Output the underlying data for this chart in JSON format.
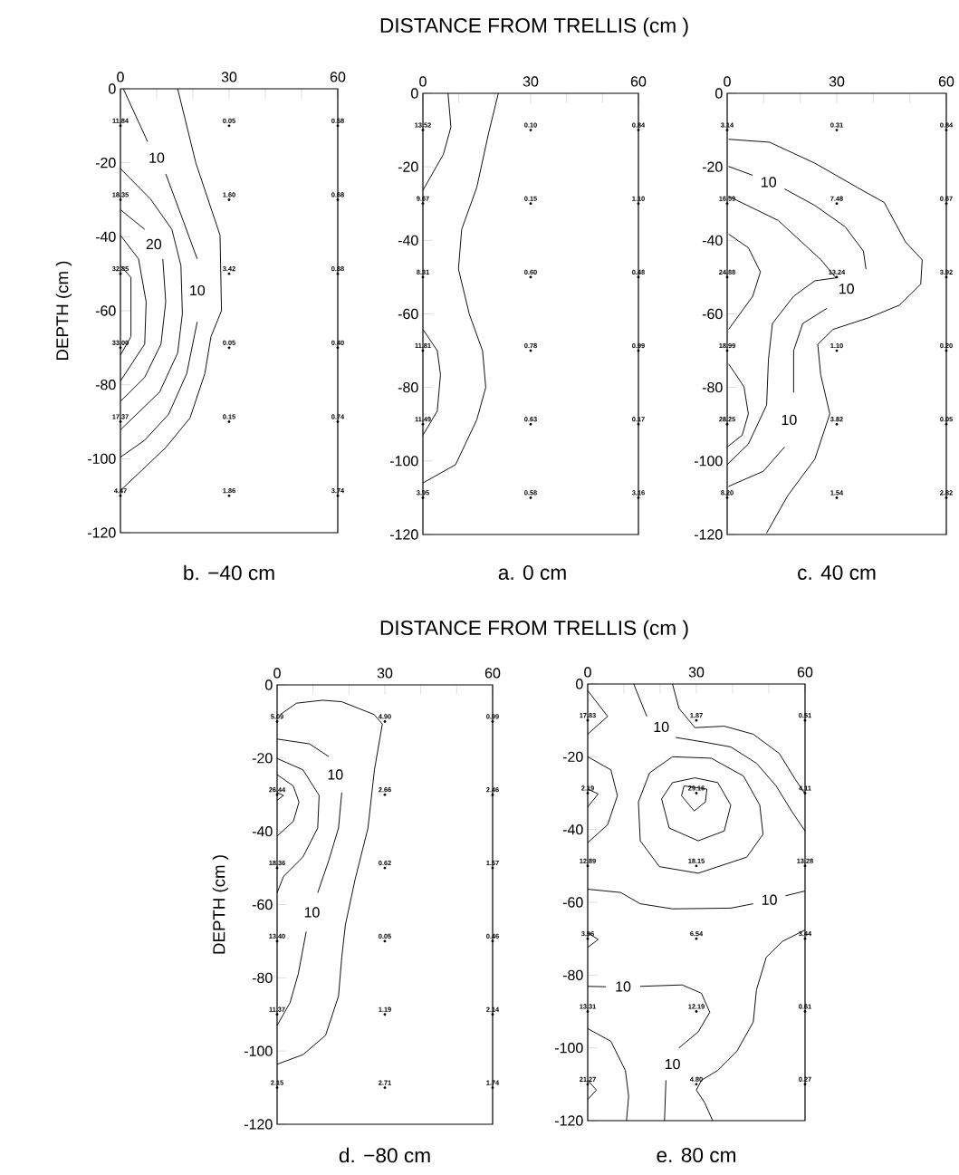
{
  "chart_data": [
    {
      "type": "scatter",
      "subtitle": "b.   −40 cm",
      "ylabel": "DEPTH (cm )",
      "xlim": [
        0,
        60
      ],
      "ylim": [
        -120,
        0
      ],
      "xticks": [
        0,
        {
          "value": 10,
          "label": null
        },
        {
          "value": 20,
          "label": null
        },
        30,
        {
          "value": 40,
          "label": null
        },
        {
          "value": 50,
          "label": null
        },
        60
      ],
      "yticks": [
        -120,
        -100,
        -80,
        -60,
        -40,
        -20,
        0
      ],
      "grid": false,
      "legend": false,
      "series": [
        {
          "type": "line",
          "color": "#000000",
          "marker": "none",
          "line_style": "solid",
          "x": [
            15.8,
            20.8,
            27.5,
            27.9,
            25,
            23.3,
            19.2,
            12.5,
            0
          ],
          "values": [
            0,
            -20,
            -39.6,
            -60,
            -67,
            -77,
            -89,
            -97,
            -108.6
          ]
        },
        {
          "type": "line",
          "name": "10",
          "color": "#000000",
          "marker": "none",
          "line_style": "solid",
          "x": [
            0.8,
            7.5,
            null,
            12.5,
            16.7,
            21.2,
            null,
            21.2,
            18.3,
            13.3,
            6.7,
            0
          ],
          "values": [
            0,
            -14.3,
            null,
            -23,
            -34,
            -46,
            null,
            -63,
            -77,
            -88,
            -95,
            -99.6
          ]
        },
        {
          "type": "line",
          "color": "#000000",
          "marker": "none",
          "line_style": "solid",
          "x": [
            0,
            8.3,
            14.2,
            16.7,
            17.1,
            15.8,
            10.8,
            0
          ],
          "values": [
            -21.6,
            -29.8,
            -38,
            -47.8,
            -60.8,
            -71.4,
            -82,
            -92.2
          ]
        },
        {
          "type": "line",
          "name": "20",
          "color": "#000000",
          "marker": "none",
          "line_style": "solid",
          "x": [
            0,
            6.7,
            null,
            11.7,
            12.5,
            11.2,
            6.7,
            0
          ],
          "values": [
            -32.7,
            -38,
            null,
            -46,
            -57.6,
            -69,
            -78,
            -84.5
          ]
        },
        {
          "type": "line",
          "color": "#000000",
          "marker": "none",
          "line_style": "solid",
          "x": [
            0,
            5,
            7.1,
            6.7,
            0
          ],
          "values": [
            -39.6,
            -46,
            -57.6,
            -69,
            -79
          ]
        },
        {
          "type": "line",
          "color": "#000000",
          "marker": "none",
          "line_style": "solid",
          "x": [
            0,
            2.9,
            2.9,
            0
          ],
          "values": [
            -47.8,
            -51,
            -67,
            -72
          ]
        },
        {
          "type": "scatter",
          "color": "#000000",
          "marker": "circle",
          "x": [
            0,
            0,
            0,
            0,
            0,
            0,
            30,
            30,
            30,
            30,
            30,
            30,
            60,
            60,
            60,
            60,
            60,
            60
          ],
          "values": [
            -10,
            -30,
            -50,
            -70,
            -90,
            -110,
            -10,
            -30,
            -50,
            -70,
            -90,
            -110,
            -10,
            -30,
            -50,
            -70,
            -90,
            -110
          ]
        }
      ],
      "annotations": [
        {
          "text": "11.84",
          "x": 0,
          "y": -10
        },
        {
          "text": "18.35",
          "x": 0,
          "y": -30
        },
        {
          "text": "32.85",
          "x": 0,
          "y": -50
        },
        {
          "text": "33.00",
          "x": 0,
          "y": -70
        },
        {
          "text": "17.37",
          "x": 0,
          "y": -90
        },
        {
          "text": "4.47",
          "x": 0,
          "y": -110
        },
        {
          "text": "0.05",
          "x": 30,
          "y": -10
        },
        {
          "text": "1.60",
          "x": 30,
          "y": -30
        },
        {
          "text": "3.42",
          "x": 30,
          "y": -50
        },
        {
          "text": "0.05",
          "x": 30,
          "y": -70
        },
        {
          "text": "0.15",
          "x": 30,
          "y": -90
        },
        {
          "text": "1.86",
          "x": 30,
          "y": -110
        },
        {
          "text": "0.58",
          "x": 60,
          "y": -10
        },
        {
          "text": "0.68",
          "x": 60,
          "y": -30
        },
        {
          "text": "0.88",
          "x": 60,
          "y": -50
        },
        {
          "text": "0.40",
          "x": 60,
          "y": -70
        },
        {
          "text": "0.74",
          "x": 60,
          "y": -90
        },
        {
          "text": "3.74",
          "x": 60,
          "y": -110
        }
      ]
    },
    {
      "type": "scatter",
      "title": "DISTANCE FROM TRELLIS (cm )",
      "subtitle": "a.   0 cm",
      "xlim": [
        0,
        60
      ],
      "ylim": [
        -120,
        0
      ],
      "xticks": [
        0,
        {
          "value": 10,
          "label": null
        },
        {
          "value": 20,
          "label": null
        },
        30,
        {
          "value": 40,
          "label": null
        },
        {
          "value": 50,
          "label": null
        },
        60
      ],
      "yticks": [
        -120,
        -100,
        -80,
        -60,
        -40,
        -20,
        0
      ],
      "grid": false,
      "legend": false,
      "series": [
        {
          "type": "line",
          "color": "#000000",
          "marker": "none",
          "line_style": "solid",
          "x": [
            7,
            7.8,
            5.7,
            0
          ],
          "values": [
            0,
            -9.2,
            -16.6,
            -26.4
          ]
        },
        {
          "type": "line",
          "color": "#000000",
          "marker": "none",
          "line_style": "solid",
          "x": [
            21,
            18.3,
            15,
            10.8,
            9.9,
            12.9,
            16.6,
            17.5,
            15,
            9.1,
            0
          ],
          "values": [
            0,
            -10.8,
            -25.6,
            -37,
            -47.8,
            -60,
            -70,
            -80,
            -88.8,
            -101,
            -106
          ]
        },
        {
          "type": "line",
          "color": "#000000",
          "marker": "none",
          "line_style": "solid",
          "x": [
            0,
            4,
            4.9,
            4,
            0
          ],
          "values": [
            -64.2,
            -70,
            -76.5,
            -86.4,
            -93
          ]
        },
        {
          "type": "scatter",
          "color": "#000000",
          "marker": "circle",
          "x": [
            0,
            0,
            0,
            0,
            0,
            0,
            30,
            30,
            30,
            30,
            30,
            30,
            60,
            60,
            60,
            60,
            60,
            60
          ],
          "values": [
            -10,
            -30,
            -50,
            -70,
            -90,
            -110,
            -10,
            -30,
            -50,
            -70,
            -90,
            -110,
            -10,
            -30,
            -50,
            -70,
            -90,
            -110
          ]
        }
      ],
      "annotations": [
        {
          "text": "13.52",
          "x": 0,
          "y": -10
        },
        {
          "text": "9.67",
          "x": 0,
          "y": -30
        },
        {
          "text": "8.31",
          "x": 0,
          "y": -50
        },
        {
          "text": "11.81",
          "x": 0,
          "y": -70
        },
        {
          "text": "11.49",
          "x": 0,
          "y": -90
        },
        {
          "text": "3.95",
          "x": 0,
          "y": -110
        },
        {
          "text": "0.10",
          "x": 30,
          "y": -10
        },
        {
          "text": "0.15",
          "x": 30,
          "y": -30
        },
        {
          "text": "0.60",
          "x": 30,
          "y": -50
        },
        {
          "text": "0.78",
          "x": 30,
          "y": -70
        },
        {
          "text": "0.63",
          "x": 30,
          "y": -90
        },
        {
          "text": "0.58",
          "x": 30,
          "y": -110
        },
        {
          "text": "0.84",
          "x": 60,
          "y": -10
        },
        {
          "text": "1.10",
          "x": 60,
          "y": -30
        },
        {
          "text": "0.48",
          "x": 60,
          "y": -50
        },
        {
          "text": "0.99",
          "x": 60,
          "y": -70
        },
        {
          "text": "0.17",
          "x": 60,
          "y": -90
        },
        {
          "text": "3.16",
          "x": 60,
          "y": -110
        }
      ]
    },
    {
      "type": "scatter",
      "subtitle": "c.   40 cm",
      "xlim": [
        0,
        60
      ],
      "ylim": [
        -120,
        0
      ],
      "xticks": [
        0,
        {
          "value": 10,
          "label": null
        },
        {
          "value": 20,
          "label": null
        },
        30,
        {
          "value": 40,
          "label": null
        },
        {
          "value": 50,
          "label": null
        },
        60
      ],
      "yticks": [
        -120,
        -100,
        -80,
        -60,
        -40,
        -20,
        0
      ],
      "grid": false,
      "legend": false,
      "series": [
        {
          "type": "line",
          "color": "#000000",
          "marker": "none",
          "line_style": "solid",
          "x": [
            0.4,
            11.6,
            24,
            35.6,
            43,
            48.8,
            53.4,
            53,
            47.2,
            38.9,
            29,
            24.8,
            25.6,
            28.1,
            24,
            16.6,
            10.8
          ],
          "values": [
            -12.5,
            -13.3,
            -19,
            -25.6,
            -29.7,
            -40.4,
            -45.3,
            -51.9,
            -57.6,
            -61,
            -64.2,
            -68.3,
            -76.5,
            -87.2,
            -99.5,
            -109.4,
            -119.6
          ]
        },
        {
          "type": "line",
          "name": "10",
          "color": "#000000",
          "marker": "none",
          "line_style": "solid",
          "x": [
            0.4,
            7,
            null,
            15.7,
            24,
            32.3,
            37.3,
            38,
            null,
            27.3,
            20.7,
            18.2,
            18.2,
            null,
            15.7,
            9.9,
            0.4
          ],
          "values": [
            -19.9,
            -22.3,
            null,
            -26,
            -30.5,
            -36.3,
            -42.9,
            -47.8,
            null,
            -58.5,
            -62.6,
            -70,
            -81.4,
            null,
            -96.2,
            -102.8,
            -106.9
          ]
        },
        {
          "type": "line",
          "color": "#000000",
          "marker": "none",
          "line_style": "solid",
          "x": [
            0.4,
            14,
            25.7,
            29.8,
            24,
            18.2,
            12.4,
            11.3,
            10.8,
            5.8,
            0
          ],
          "values": [
            -28,
            -34.6,
            -45.3,
            -50.2,
            -51,
            -55.2,
            -62.6,
            -72.4,
            -84.8,
            -95.4,
            -101
          ]
        },
        {
          "type": "line",
          "color": "#000000",
          "marker": "none",
          "line_style": "solid",
          "x": [
            0.4,
            5.8,
            9.1,
            7,
            0.4
          ],
          "values": [
            -38.3,
            -42,
            -48.6,
            -55.2,
            -64.2
          ]
        },
        {
          "type": "line",
          "color": "#000000",
          "marker": "none",
          "line_style": "solid",
          "x": [
            0.4,
            4.6,
            5.8,
            4.1,
            0
          ],
          "values": [
            -73.6,
            -79.8,
            -87.2,
            -93,
            -96.2
          ]
        },
        {
          "type": "scatter",
          "color": "#000000",
          "marker": "circle",
          "x": [
            0,
            0,
            0,
            0,
            0,
            0,
            30,
            30,
            30,
            30,
            30,
            30,
            60,
            60,
            60,
            60,
            60,
            60
          ],
          "values": [
            -10,
            -30,
            -50,
            -70,
            -90,
            -110,
            -10,
            -30,
            -50,
            -70,
            -90,
            -110,
            -10,
            -30,
            -50,
            -70,
            -90,
            -110
          ]
        }
      ],
      "annotations": [
        {
          "text": "3.14",
          "x": 0,
          "y": -10
        },
        {
          "text": "16.59",
          "x": 0,
          "y": -30
        },
        {
          "text": "24.88",
          "x": 0,
          "y": -50
        },
        {
          "text": "18.99",
          "x": 0,
          "y": -70
        },
        {
          "text": "28.25",
          "x": 0,
          "y": -90
        },
        {
          "text": "8.20",
          "x": 0,
          "y": -110
        },
        {
          "text": "0.31",
          "x": 30,
          "y": -10
        },
        {
          "text": "7.48",
          "x": 30,
          "y": -30
        },
        {
          "text": "13.24",
          "x": 30,
          "y": -50
        },
        {
          "text": "1.10",
          "x": 30,
          "y": -70
        },
        {
          "text": "3.82",
          "x": 30,
          "y": -90
        },
        {
          "text": "1.54",
          "x": 30,
          "y": -110
        },
        {
          "text": "0.84",
          "x": 60,
          "y": -10
        },
        {
          "text": "0.67",
          "x": 60,
          "y": -30
        },
        {
          "text": "3.92",
          "x": 60,
          "y": -50
        },
        {
          "text": "0.20",
          "x": 60,
          "y": -70
        },
        {
          "text": "0.05",
          "x": 60,
          "y": -90
        },
        {
          "text": "2.82",
          "x": 60,
          "y": -110
        }
      ]
    },
    {
      "type": "scatter",
      "title": "DISTANCE FROM TRELLIS (cm )",
      "subtitle": "d.   −80 cm",
      "ylabel": "DEPTH (cm )",
      "xlim": [
        0,
        60
      ],
      "ylim": [
        -120,
        0
      ],
      "xticks": [
        0,
        {
          "value": 10,
          "label": null
        },
        {
          "value": 20,
          "label": null
        },
        30,
        {
          "value": 40,
          "label": null
        },
        {
          "value": 50,
          "label": null
        },
        60
      ],
      "yticks": [
        -120,
        -100,
        -80,
        -60,
        -40,
        -20,
        0
      ],
      "grid": false,
      "legend": false,
      "series": [
        {
          "type": "line",
          "color": "#000000",
          "marker": "none",
          "line_style": "solid",
          "x": [
            0.9,
            5.4,
            12.6,
            18,
            27,
            29.3,
            27.1,
            25.3,
            21.7,
            19,
            18,
            17.1,
            13.5,
            7.2,
            0
          ],
          "values": [
            -8.1,
            -5,
            -4.2,
            -4.6,
            -8.1,
            -10.7,
            -23.2,
            -39.1,
            -53.2,
            -65.6,
            -74.4,
            -85,
            -95.7,
            -101,
            -103.6
          ]
        },
        {
          "type": "line",
          "name": "10",
          "color": "#000000",
          "marker": "none",
          "line_style": "solid",
          "x": [
            0,
            9,
            14.4,
            null,
            18,
            17.1,
            14.4,
            11.3,
            null,
            8.1,
            5.9,
            3.6,
            0
          ],
          "values": [
            -14.8,
            -16.1,
            -19.6,
            null,
            -29.4,
            -39.1,
            -47.9,
            -56.8,
            null,
            -67.4,
            -78.9,
            -86.8,
            -93
          ]
        },
        {
          "type": "line",
          "color": "#000000",
          "marker": "none",
          "line_style": "solid",
          "x": [
            0,
            7.2,
            11.7,
            11.3,
            7.2,
            1.8,
            0
          ],
          "values": [
            -20.1,
            -23.2,
            -30.2,
            -39.1,
            -47,
            -52.3,
            -56.8
          ]
        },
        {
          "type": "line",
          "color": "#000000",
          "marker": "none",
          "line_style": "solid",
          "x": [
            0,
            4.5,
            6.1,
            4.5,
            0
          ],
          "values": [
            -24.5,
            -27.6,
            -32,
            -37.3,
            -41.3
          ]
        },
        {
          "type": "line",
          "color": "#000000",
          "marker": "none",
          "line_style": "solid",
          "x": [
            0,
            1.8,
            0
          ],
          "values": [
            -29.4,
            -30.2,
            -31.5
          ]
        },
        {
          "type": "scatter",
          "color": "#000000",
          "marker": "circle",
          "x": [
            0,
            0,
            0,
            0,
            0,
            0,
            30,
            30,
            30,
            30,
            30,
            30,
            60,
            60,
            60,
            60,
            60,
            60
          ],
          "values": [
            -10,
            -30,
            -50,
            -70,
            -90,
            -110,
            -10,
            -30,
            -50,
            -70,
            -90,
            -110,
            -10,
            -30,
            -50,
            -70,
            -90,
            -110
          ]
        }
      ],
      "annotations": [
        {
          "text": "5.09",
          "x": 0,
          "y": -10
        },
        {
          "text": "26.44",
          "x": 0,
          "y": -30
        },
        {
          "text": "18.36",
          "x": 0,
          "y": -50
        },
        {
          "text": "13.40",
          "x": 0,
          "y": -70
        },
        {
          "text": "11.37",
          "x": 0,
          "y": -90
        },
        {
          "text": "2.15",
          "x": 0,
          "y": -110
        },
        {
          "text": "4.90",
          "x": 30,
          "y": -10
        },
        {
          "text": "2.66",
          "x": 30,
          "y": -30
        },
        {
          "text": "0.62",
          "x": 30,
          "y": -50
        },
        {
          "text": "0.05",
          "x": 30,
          "y": -70
        },
        {
          "text": "1.19",
          "x": 30,
          "y": -90
        },
        {
          "text": "2.71",
          "x": 30,
          "y": -110
        },
        {
          "text": "0.99",
          "x": 60,
          "y": -10
        },
        {
          "text": "2.46",
          "x": 60,
          "y": -30
        },
        {
          "text": "1.57",
          "x": 60,
          "y": -50
        },
        {
          "text": "0.46",
          "x": 60,
          "y": -70
        },
        {
          "text": "2.14",
          "x": 60,
          "y": -90
        },
        {
          "text": "1.74",
          "x": 60,
          "y": -110
        }
      ]
    },
    {
      "type": "scatter",
      "subtitle": "e.   80 cm",
      "xlim": [
        0,
        60
      ],
      "ylim": [
        -120,
        0
      ],
      "xticks": [
        0,
        {
          "value": 10,
          "label": null
        },
        {
          "value": 20,
          "label": null
        },
        30,
        {
          "value": 40,
          "label": null
        },
        {
          "value": 50,
          "label": null
        },
        60
      ],
      "yticks": [
        -120,
        -100,
        -80,
        -60,
        -40,
        -20,
        0
      ],
      "grid": false,
      "legend": false,
      "series": [
        {
          "type": "line",
          "color": "#000000",
          "marker": "none",
          "line_style": "solid",
          "x": [
            0,
            5.5,
            0
          ],
          "values": [
            -1.8,
            -8.9,
            -13.8
          ]
        },
        {
          "type": "line",
          "name": "10",
          "color": "#000000",
          "marker": "none",
          "line_style": "solid",
          "x": [
            12.7,
            16.3,
            null,
            24.3,
            32.3,
            39.5,
            46.6,
            52,
            56.4,
            60
          ],
          "values": [
            0,
            -8.9,
            null,
            -14.7,
            -16,
            -17.3,
            -21.8,
            -28,
            -35.1,
            -40.4
          ]
        },
        {
          "type": "line",
          "color": "#000000",
          "marker": "none",
          "line_style": "solid",
          "x": [
            23.4,
            25.2,
            29.6,
            37.7,
            45.7,
            52.9,
            57.3,
            60
          ],
          "values": [
            0,
            -6.7,
            -12,
            -11.6,
            -13.8,
            -19.1,
            -26.2,
            -30.2
          ]
        },
        {
          "type": "line",
          "color": "#000000",
          "marker": "none",
          "line_style": "solid",
          "x": [
            0,
            6.4,
            8.2,
            5.5,
            0
          ],
          "values": [
            -20,
            -23.6,
            -30.7,
            -38.7,
            -43.6
          ]
        },
        {
          "type": "line",
          "color": "#000000",
          "marker": "none",
          "line_style": "solid",
          "x": [
            0,
            2.9,
            0
          ],
          "values": [
            -28.9,
            -30.2,
            -33.8
          ]
        },
        {
          "type": "line",
          "color": "#000000",
          "marker": "none",
          "line_style": "solid",
          "x": [
            14,
            17.1,
            23.4,
            34.1,
            43,
            47.5,
            48.4,
            null,
            14,
            14.5,
            19.8,
            30.5,
            43.9,
            48.4
          ],
          "values": [
            -32.4,
            -24.4,
            -20,
            -20.4,
            -25.3,
            -33.3,
            -41.3,
            null,
            -32.4,
            -43.1,
            -50.2,
            -52,
            -47.6,
            -41.3
          ]
        },
        {
          "type": "line",
          "color": "#000000",
          "marker": "none",
          "line_style": "solid",
          "x": [
            20.4,
            23.4,
            29.6,
            35.9,
            39.5,
            null,
            20.4,
            22.5,
            30.5,
            37.7,
            39.5
          ],
          "values": [
            -31.6,
            -27.1,
            -25.8,
            -27.1,
            -33.3,
            null,
            -31.6,
            -39.6,
            -43.1,
            -40.4,
            -33.3
          ]
        },
        {
          "type": "line",
          "color": "#000000",
          "marker": "none",
          "line_style": "solid",
          "x": [
            25.9,
            26.6,
            32.9,
            null,
            25.9,
            29.4,
            32.5,
            32.9
          ],
          "values": [
            -30.7,
            -28,
            -28.9,
            null,
            -30.7,
            -34.9,
            -32.4,
            -28.9
          ]
        },
        {
          "type": "line",
          "name": "10",
          "color": "#000000",
          "marker": "none",
          "line_style": "solid",
          "x": [
            0,
            9.1,
            14.5,
            23.4,
            39.5,
            45.7,
            null,
            54.6,
            60
          ],
          "values": [
            -56.4,
            -57.3,
            -60.4,
            -61.8,
            -61.6,
            -60.4,
            null,
            -58.2,
            -56.9
          ]
        },
        {
          "type": "line",
          "color": "#000000",
          "marker": "none",
          "line_style": "solid",
          "x": [
            0,
            2.9,
            0
          ],
          "values": [
            -68.4,
            -70.2,
            -72.4
          ]
        },
        {
          "type": "line",
          "name": "10",
          "color": "#000000",
          "marker": "none",
          "line_style": "solid",
          "x": [
            0,
            5,
            null,
            14.5,
            26.1,
            31.4,
            33.7,
            30.5,
            25.2,
            null,
            21.6,
            21.2
          ],
          "values": [
            -83.1,
            -83.2,
            null,
            -83.1,
            -82.7,
            -85,
            -90.2,
            -95.6,
            -100,
            null,
            -108.9,
            -120
          ]
        },
        {
          "type": "line",
          "color": "#000000",
          "marker": "none",
          "line_style": "solid",
          "x": [
            60,
            53.8,
            49.3,
            46.6,
            45.7,
            41.2,
            35.9,
            31.4,
            30,
            32.3,
            34.5
          ],
          "values": [
            -67.6,
            -70.7,
            -75.1,
            -84,
            -92.9,
            -100.9,
            -106.2,
            -108.9,
            -111.6,
            -115.1,
            -120
          ]
        },
        {
          "type": "line",
          "color": "#000000",
          "marker": "none",
          "line_style": "solid",
          "x": [
            0,
            6.4,
            10.4,
            11.3,
            10.7
          ],
          "values": [
            -94.7,
            -98.2,
            -106.2,
            -113.3,
            -120
          ]
        },
        {
          "type": "line",
          "color": "#000000",
          "marker": "none",
          "line_style": "solid",
          "x": [
            0,
            2.4,
            0
          ],
          "values": [
            -108.9,
            -111.6,
            -114.2
          ]
        },
        {
          "type": "scatter",
          "color": "#000000",
          "marker": "circle",
          "x": [
            0,
            0,
            0,
            0,
            0,
            0,
            30,
            30,
            30,
            30,
            30,
            30,
            60,
            60,
            60,
            60,
            60,
            60
          ],
          "values": [
            -10,
            -30,
            -50,
            -70,
            -90,
            -110,
            -10,
            -30,
            -50,
            -70,
            -90,
            -110,
            -10,
            -30,
            -50,
            -70,
            -90,
            -110
          ]
        }
      ],
      "annotations": [
        {
          "text": "17.83",
          "x": 0,
          "y": -10
        },
        {
          "text": "2.19",
          "x": 0,
          "y": -30
        },
        {
          "text": "12.89",
          "x": 0,
          "y": -50
        },
        {
          "text": "3.96",
          "x": 0,
          "y": -70
        },
        {
          "text": "13.31",
          "x": 0,
          "y": -90
        },
        {
          "text": "21.27",
          "x": 0,
          "y": -110
        },
        {
          "text": "1.87",
          "x": 30,
          "y": -10
        },
        {
          "text": "29.16",
          "x": 30,
          "y": -30
        },
        {
          "text": "18.15",
          "x": 30,
          "y": -50
        },
        {
          "text": "6.54",
          "x": 30,
          "y": -70
        },
        {
          "text": "12.19",
          "x": 30,
          "y": -90
        },
        {
          "text": "4.80",
          "x": 30,
          "y": -110
        },
        {
          "text": "0.51",
          "x": 60,
          "y": -10
        },
        {
          "text": "4.11",
          "x": 60,
          "y": -30
        },
        {
          "text": "13.28",
          "x": 60,
          "y": -50
        },
        {
          "text": "3.44",
          "x": 60,
          "y": -70
        },
        {
          "text": "0.61",
          "x": 60,
          "y": -90
        },
        {
          "text": "0.27",
          "x": 60,
          "y": -110
        }
      ]
    }
  ]
}
